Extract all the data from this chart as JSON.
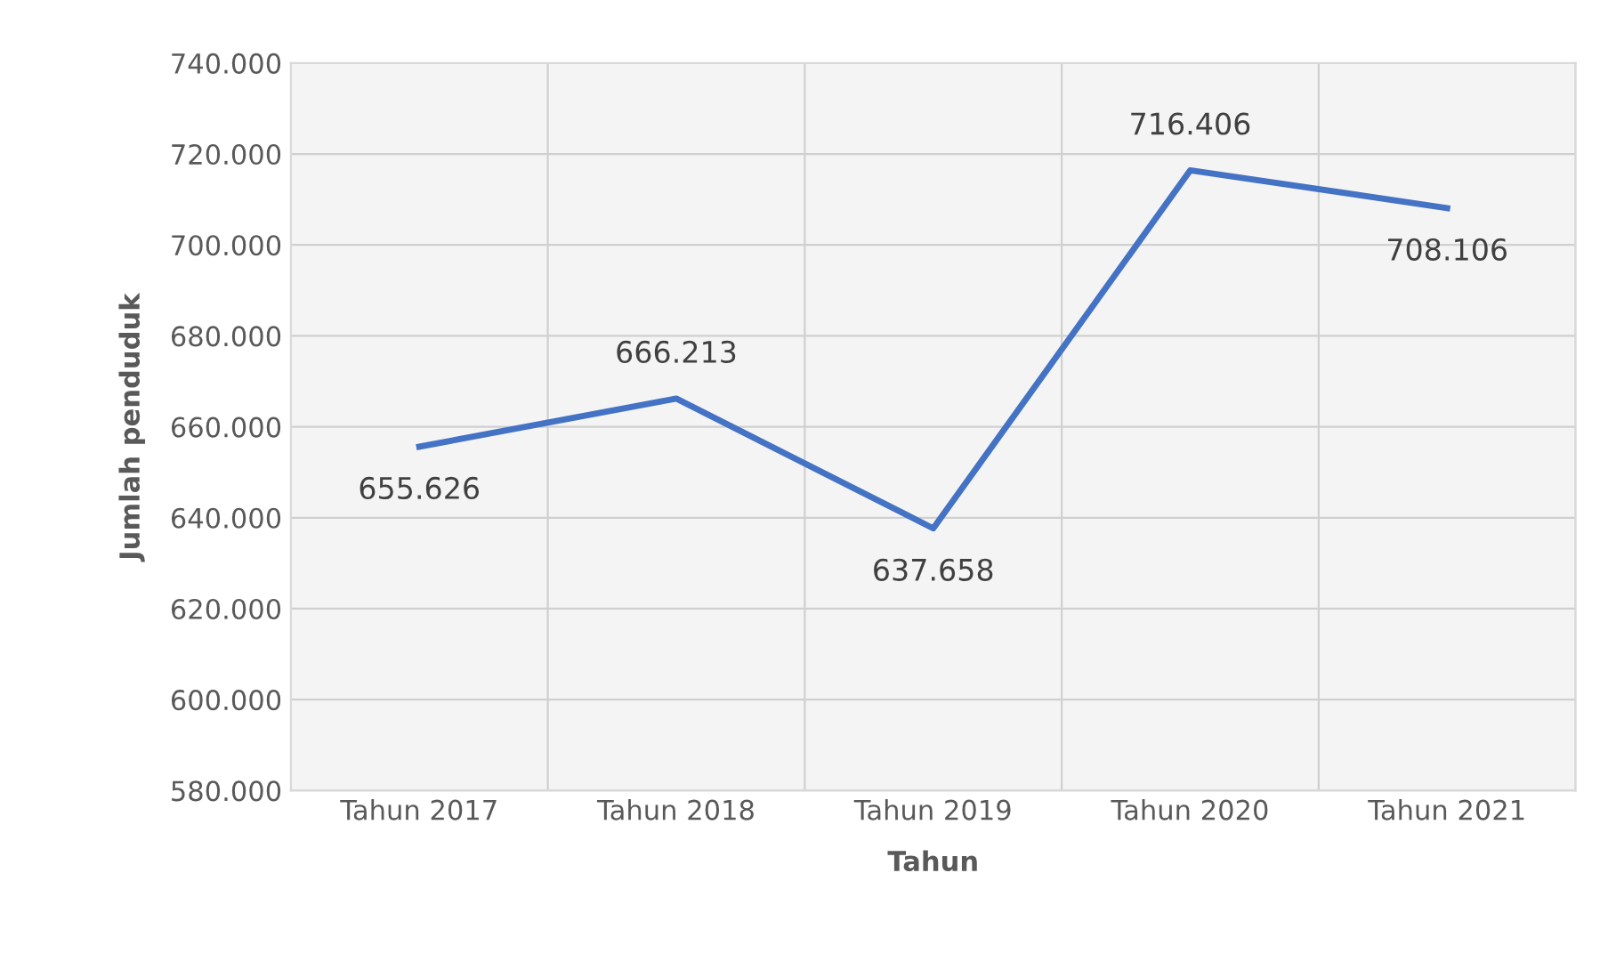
{
  "chart_data": {
    "type": "line",
    "xlabel": "Tahun",
    "ylabel": "Jumlah penduduk",
    "categories": [
      "Tahun 2017",
      "Tahun 2018",
      "Tahun 2019",
      "Tahun 2020",
      "Tahun 2021"
    ],
    "series": [
      {
        "color": "#4472c4",
        "values": [
          655626,
          666213,
          637658,
          716406,
          708106
        ],
        "value_labels": [
          "655.626",
          "666.213",
          "637.658",
          "716.406",
          "708.106"
        ]
      }
    ],
    "ylim": [
      580000,
      740000
    ],
    "yticks": [
      {
        "value": 580000,
        "label": "580.000"
      },
      {
        "value": 600000,
        "label": "600.000"
      },
      {
        "value": 620000,
        "label": "620.000"
      },
      {
        "value": 640000,
        "label": "640.000"
      },
      {
        "value": 660000,
        "label": "660.000"
      },
      {
        "value": 680000,
        "label": "680.000"
      },
      {
        "value": 700000,
        "label": "700.000"
      },
      {
        "value": 720000,
        "label": "720.000"
      },
      {
        "value": 740000,
        "label": "740.000"
      }
    ],
    "grid": true,
    "marker": "none",
    "line_style": "solid"
  }
}
